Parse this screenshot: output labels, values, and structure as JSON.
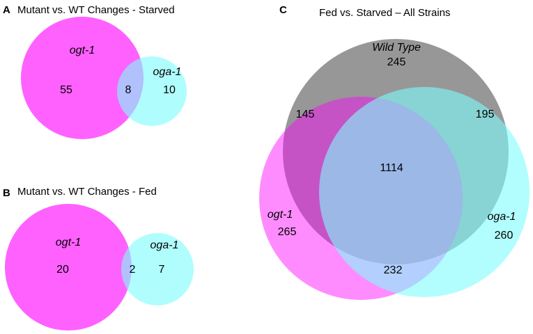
{
  "colors": {
    "ogt1": "#ff00ff",
    "oga1": "#7ffbfb",
    "overlap_ab": "#a8b8f0",
    "wild_type": "#808080",
    "big_overlap": "#a5cdea"
  },
  "panels": {
    "a": {
      "letter": "A",
      "title": "Mutant vs. WT Changes - Starved",
      "set1": "ogt-1",
      "set2": "oga-1",
      "only1": "55",
      "both": "8",
      "only2": "10"
    },
    "b": {
      "letter": "B",
      "title": "Mutant vs. WT Changes - Fed",
      "set1": "ogt-1",
      "set2": "oga-1",
      "only1": "20",
      "both": "2",
      "only2": "7"
    },
    "c": {
      "letter": "C",
      "title": "Fed vs. Starved – All Strains",
      "set_wt": "Wild Type",
      "set_ogt": "ogt-1",
      "set_oga": "oga-1",
      "wt_only": "245",
      "wt_ogt": "145",
      "wt_oga": "195",
      "all": "1114",
      "ogt_only": "265",
      "oga_only": "260",
      "ogt_oga": "232"
    }
  }
}
